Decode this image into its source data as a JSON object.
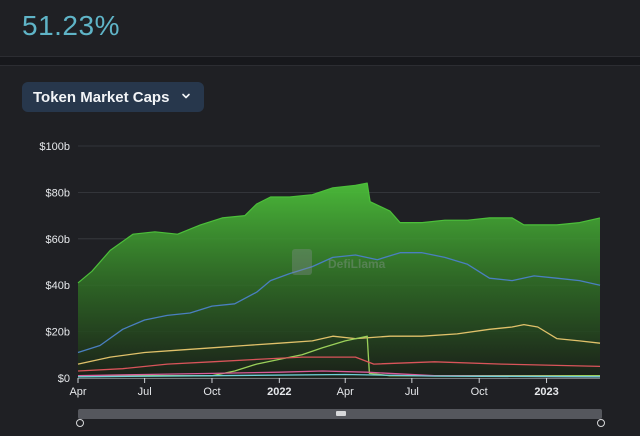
{
  "header": {
    "stat_value": "51.23%"
  },
  "dropdown": {
    "label": "Token Market Caps"
  },
  "watermark": "DefiLlama",
  "colors": {
    "accent": "#5fb4c7",
    "green_top": "#4cbf3a",
    "blue": "#4a7fc0",
    "yellow": "#e0c16a",
    "red": "#d9545a",
    "pink": "#d85c99",
    "olive": "#9bd05a",
    "cyan": "#6fd0d8"
  },
  "chart_data": {
    "type": "area",
    "ylim": [
      0,
      100
    ],
    "y_unit": "b",
    "y_ticks": [
      "$0",
      "$20b",
      "$40b",
      "$60b",
      "$80b",
      "$100b"
    ],
    "x_range": [
      "2021-04-01",
      "2023-03-15"
    ],
    "x_ticks": [
      {
        "date": "2021-04-01",
        "label": "Apr",
        "bold": false
      },
      {
        "date": "2021-07-01",
        "label": "Jul",
        "bold": false
      },
      {
        "date": "2021-10-01",
        "label": "Oct",
        "bold": false
      },
      {
        "date": "2022-01-01",
        "label": "2022",
        "bold": true
      },
      {
        "date": "2022-04-01",
        "label": "Apr",
        "bold": false
      },
      {
        "date": "2022-07-01",
        "label": "Jul",
        "bold": false
      },
      {
        "date": "2022-10-01",
        "label": "Oct",
        "bold": false
      },
      {
        "date": "2023-01-01",
        "label": "2023",
        "bold": true
      }
    ],
    "series": [
      {
        "key": "total",
        "color": "#4cbf3a",
        "fill": true,
        "points": [
          [
            "2021-04-01",
            41
          ],
          [
            "2021-04-20",
            46
          ],
          [
            "2021-05-15",
            55
          ],
          [
            "2021-06-15",
            62
          ],
          [
            "2021-07-15",
            63
          ],
          [
            "2021-08-15",
            62
          ],
          [
            "2021-09-15",
            66
          ],
          [
            "2021-10-15",
            69
          ],
          [
            "2021-11-15",
            70
          ],
          [
            "2021-12-01",
            75
          ],
          [
            "2021-12-20",
            78
          ],
          [
            "2022-01-15",
            78
          ],
          [
            "2022-02-15",
            79
          ],
          [
            "2022-03-15",
            82
          ],
          [
            "2022-04-15",
            83
          ],
          [
            "2022-05-01",
            84
          ],
          [
            "2022-05-05",
            76
          ],
          [
            "2022-06-01",
            72
          ],
          [
            "2022-06-15",
            67
          ],
          [
            "2022-07-15",
            67
          ],
          [
            "2022-08-15",
            68
          ],
          [
            "2022-09-15",
            68
          ],
          [
            "2022-10-15",
            69
          ],
          [
            "2022-11-15",
            69
          ],
          [
            "2022-12-01",
            66
          ],
          [
            "2023-01-15",
            66
          ],
          [
            "2023-02-15",
            67
          ],
          [
            "2023-03-15",
            69
          ]
        ]
      },
      {
        "key": "blue",
        "color": "#4a7fc0",
        "points": [
          [
            "2021-04-01",
            11
          ],
          [
            "2021-05-01",
            14
          ],
          [
            "2021-06-01",
            21
          ],
          [
            "2021-07-01",
            25
          ],
          [
            "2021-08-01",
            27
          ],
          [
            "2021-09-01",
            28
          ],
          [
            "2021-10-01",
            31
          ],
          [
            "2021-11-01",
            32
          ],
          [
            "2021-12-01",
            37
          ],
          [
            "2021-12-20",
            42
          ],
          [
            "2022-01-15",
            45
          ],
          [
            "2022-02-15",
            48
          ],
          [
            "2022-03-15",
            52
          ],
          [
            "2022-04-15",
            53
          ],
          [
            "2022-05-15",
            51
          ],
          [
            "2022-06-15",
            54
          ],
          [
            "2022-07-15",
            54
          ],
          [
            "2022-08-15",
            52
          ],
          [
            "2022-09-15",
            49
          ],
          [
            "2022-10-15",
            43
          ],
          [
            "2022-11-15",
            42
          ],
          [
            "2022-12-15",
            44
          ],
          [
            "2023-01-15",
            43
          ],
          [
            "2023-02-15",
            42
          ],
          [
            "2023-03-15",
            40
          ]
        ]
      },
      {
        "key": "yellow",
        "color": "#e0c16a",
        "points": [
          [
            "2021-04-01",
            6
          ],
          [
            "2021-05-15",
            9
          ],
          [
            "2021-07-01",
            11
          ],
          [
            "2021-08-15",
            12
          ],
          [
            "2021-10-01",
            13
          ],
          [
            "2021-11-15",
            14
          ],
          [
            "2022-01-01",
            15
          ],
          [
            "2022-02-15",
            16
          ],
          [
            "2022-03-15",
            18
          ],
          [
            "2022-04-15",
            17
          ],
          [
            "2022-06-01",
            18
          ],
          [
            "2022-07-15",
            18
          ],
          [
            "2022-09-01",
            19
          ],
          [
            "2022-10-15",
            21
          ],
          [
            "2022-11-15",
            22
          ],
          [
            "2022-12-01",
            23
          ],
          [
            "2022-12-20",
            22
          ],
          [
            "2023-01-15",
            17
          ],
          [
            "2023-02-15",
            16
          ],
          [
            "2023-03-15",
            15
          ]
        ]
      },
      {
        "key": "olive",
        "color": "#9bd05a",
        "points": [
          [
            "2021-04-01",
            1
          ],
          [
            "2021-10-01",
            1
          ],
          [
            "2021-11-01",
            3
          ],
          [
            "2021-12-01",
            6
          ],
          [
            "2022-01-01",
            8
          ],
          [
            "2022-02-01",
            10
          ],
          [
            "2022-03-01",
            13
          ],
          [
            "2022-04-01",
            16
          ],
          [
            "2022-05-01",
            18
          ],
          [
            "2022-05-04",
            2
          ],
          [
            "2022-06-01",
            1
          ],
          [
            "2023-03-15",
            1
          ]
        ]
      },
      {
        "key": "red",
        "color": "#d9545a",
        "points": [
          [
            "2021-04-01",
            3
          ],
          [
            "2021-06-01",
            4
          ],
          [
            "2021-08-01",
            6
          ],
          [
            "2021-10-01",
            7
          ],
          [
            "2021-12-01",
            8
          ],
          [
            "2022-02-01",
            9
          ],
          [
            "2022-04-15",
            9
          ],
          [
            "2022-05-10",
            6
          ],
          [
            "2022-08-01",
            7
          ],
          [
            "2022-11-01",
            6
          ],
          [
            "2023-03-15",
            5
          ]
        ]
      },
      {
        "key": "pink",
        "color": "#d85c99",
        "points": [
          [
            "2021-04-01",
            1
          ],
          [
            "2021-07-01",
            1.5
          ],
          [
            "2021-10-01",
            2
          ],
          [
            "2022-01-01",
            2.5
          ],
          [
            "2022-03-01",
            3
          ],
          [
            "2022-05-01",
            2.5
          ],
          [
            "2022-08-01",
            1
          ],
          [
            "2023-03-15",
            0.5
          ]
        ]
      },
      {
        "key": "cyan",
        "color": "#6fd0d8",
        "points": [
          [
            "2021-04-01",
            0.5
          ],
          [
            "2021-10-01",
            1
          ],
          [
            "2022-04-01",
            1.5
          ],
          [
            "2022-08-01",
            0.8
          ],
          [
            "2023-03-15",
            0.5
          ]
        ]
      }
    ]
  }
}
